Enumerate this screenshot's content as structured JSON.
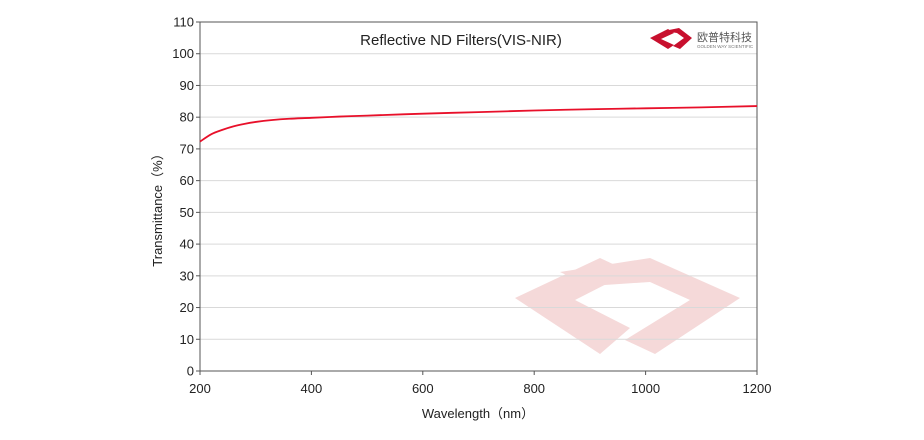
{
  "brand": {
    "name_cn": "欧普特科技",
    "name_en": "GOLDEN WAY SCIENTIFIC",
    "logo_color": "#c8102e",
    "watermark_color": "#f5d9d9"
  },
  "chart_data": {
    "type": "line",
    "title": "Reflective ND Filters(VIS-NIR)",
    "xlabel": "Wavelength（nm）",
    "ylabel": "Transmittance（%）",
    "xlim": [
      200,
      1200
    ],
    "ylim": [
      0,
      110
    ],
    "xticks": [
      200,
      400,
      600,
      800,
      1000,
      1200
    ],
    "yticks": [
      0,
      10,
      20,
      30,
      40,
      50,
      60,
      70,
      80,
      90,
      100,
      110
    ],
    "grid": "horizontal",
    "series": [
      {
        "color": "#e8102a",
        "x": [
          200,
          220,
          240,
          260,
          280,
          300,
          330,
          360,
          400,
          450,
          500,
          600,
          700,
          800,
          900,
          1000,
          1100,
          1200
        ],
        "y": [
          72.3,
          74.6,
          76.0,
          77.1,
          77.9,
          78.5,
          79.1,
          79.5,
          79.8,
          80.2,
          80.5,
          81.1,
          81.6,
          82.1,
          82.5,
          82.8,
          83.1,
          83.5
        ]
      }
    ]
  }
}
